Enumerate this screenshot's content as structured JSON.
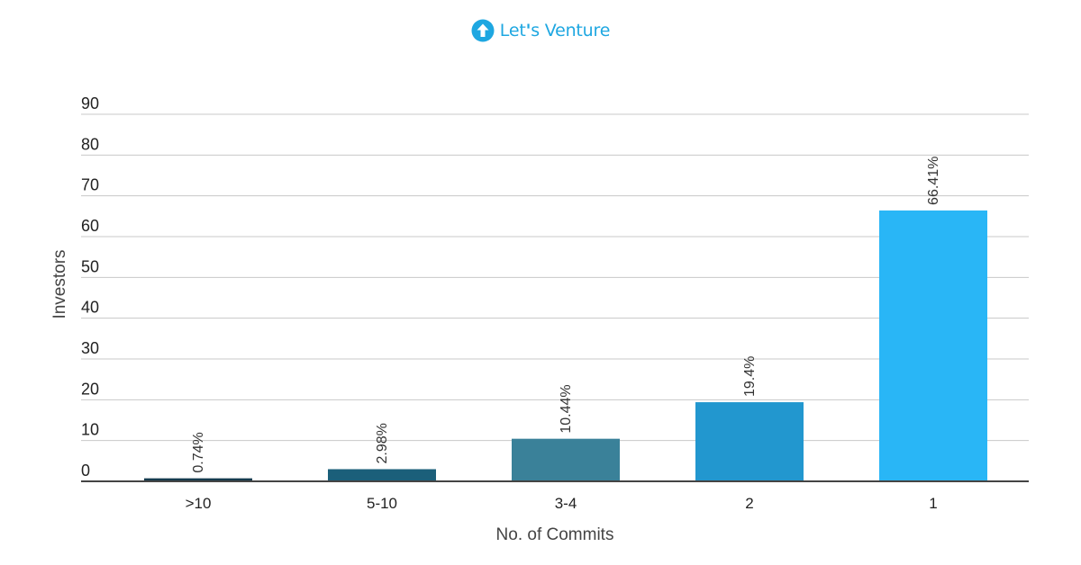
{
  "logo": {
    "text": "Let's Venture",
    "icon": "arrow-up-circle-icon",
    "color": "#1ea7e1"
  },
  "chart_data": {
    "type": "bar",
    "categories": [
      ">10",
      "5-10",
      "3-4",
      "2",
      "1"
    ],
    "values": [
      0.74,
      2.98,
      10.44,
      19.4,
      66.41
    ],
    "data_labels": [
      "0.74%",
      "2.98%",
      "10.44%",
      "19.4%",
      "66.41%"
    ],
    "colors": [
      "#153b4e",
      "#1b5f7a",
      "#3a8199",
      "#2297cf",
      "#29b6f6"
    ],
    "title": "",
    "xlabel": "No. of Commits",
    "ylabel": "Investors",
    "ylim": [
      0,
      90
    ],
    "yticks": [
      0,
      10,
      20,
      30,
      40,
      50,
      60,
      70,
      80,
      90
    ],
    "grid": true,
    "legend": "none"
  }
}
